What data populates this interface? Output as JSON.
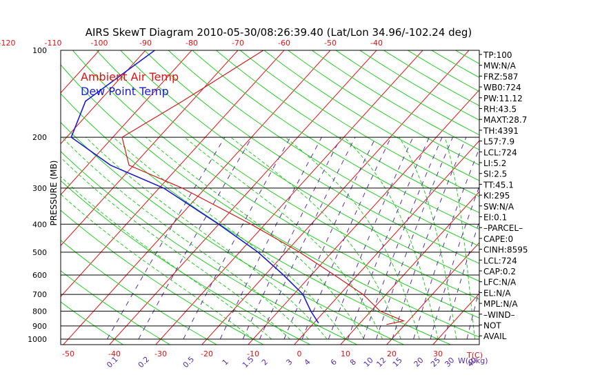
{
  "title": "AIRS SkewT Diagram 2010-05-30/08:26:39.40 (Lat/Lon 34.96/-102.24 deg)",
  "ylabel": "PRESSURE (MB)",
  "xlabel_temp": "T(C)",
  "xlabel_mix": "W(g/kg)",
  "legend": {
    "items": [
      {
        "label": "Ambient Air Temp",
        "color": "#e01010"
      },
      {
        "label": "Dew Point Temp",
        "color": "#1a1ad0"
      }
    ]
  },
  "colors": {
    "isotherm": "#e01010",
    "dry_adiabat": "#22cc22",
    "moist_adiabat": "#22cc22",
    "mixing_ratio": "#5a2aa8",
    "temperature": "#cc1a1a",
    "dewpoint": "#1a1ad0",
    "isobar": "#000000"
  },
  "side_panel": [
    "TP:100",
    "MW:N/A",
    "FRZ:587",
    "WB0:724",
    "PW:11.12",
    "RH:43.5",
    "MAXT:28.7",
    "TH:4391",
    "L57:7.9",
    "LCL:724",
    "LI:5.2",
    "SI:2.5",
    "TT:45.1",
    "KI:295",
    "SW:N/A",
    "EI:0.1",
    "–PARCEL–",
    "CAPE:0",
    "CINH:8595",
    "LCL:724",
    "CAP:0.2",
    "LFC:N/A",
    "EL:N/A",
    "MPL:N/A",
    "–WIND–",
    "NOT",
    "AVAIL"
  ],
  "chart_data": {
    "type": "line",
    "title": "AIRS SkewT Diagram 2010-05-30/08:26:39.40 (Lat/Lon 34.96/-102.24 deg)",
    "ylabel": "PRESSURE (MB)",
    "xlabel": "T(C)",
    "y_scale": "log-pressure (inverted)",
    "ylim": [
      1000,
      100
    ],
    "pressure_ticks": [
      100,
      200,
      300,
      400,
      500,
      600,
      700,
      800,
      900,
      1000
    ],
    "bottom_temp_ticks": [
      -50,
      -40,
      -30,
      -20,
      -10,
      0,
      10,
      20,
      30
    ],
    "top_temp_ticks": [
      -120,
      -110,
      -100,
      -90,
      -80,
      -70,
      -60,
      -50,
      -40
    ],
    "mixing_ratio_ticks": [
      "0.1",
      "0.2",
      "0.5",
      "1",
      "1.5",
      "2",
      "3",
      "4",
      "6",
      "8",
      "10",
      "12",
      "15",
      "20",
      "25",
      "30",
      "40"
    ],
    "grid": true,
    "legend_position": "top-left",
    "series": [
      {
        "name": "Ambient Air Temp",
        "points": [
          {
            "p": 100,
            "t": -64.5
          },
          {
            "p": 150,
            "t": -72
          },
          {
            "p": 200,
            "t": -78
          },
          {
            "p": 250,
            "t": -71
          },
          {
            "p": 300,
            "t": -55
          },
          {
            "p": 400,
            "t": -33
          },
          {
            "p": 500,
            "t": -17
          },
          {
            "p": 600,
            "t": -5
          },
          {
            "p": 700,
            "t": 5
          },
          {
            "p": 800,
            "t": 12
          },
          {
            "p": 865,
            "t": 19
          },
          {
            "p": 890,
            "t": 16
          }
        ]
      },
      {
        "name": "Dew Point Temp",
        "points": [
          {
            "p": 100,
            "t": -88
          },
          {
            "p": 150,
            "t": -93
          },
          {
            "p": 200,
            "t": -89
          },
          {
            "p": 250,
            "t": -75
          },
          {
            "p": 300,
            "t": -59
          },
          {
            "p": 400,
            "t": -40
          },
          {
            "p": 500,
            "t": -26
          },
          {
            "p": 600,
            "t": -16
          },
          {
            "p": 700,
            "t": -8
          },
          {
            "p": 800,
            "t": -3
          },
          {
            "p": 880,
            "t": 1
          }
        ]
      }
    ]
  }
}
